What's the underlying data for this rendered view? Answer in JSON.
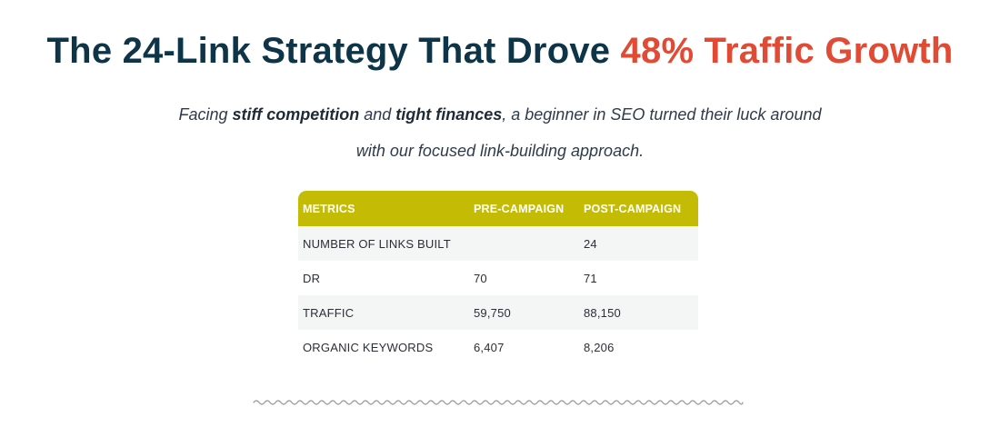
{
  "hero": {
    "title_main": "The 24-Link Strategy That Drove ",
    "title_accent": "48% Traffic Growth",
    "subtitle": {
      "line1_a": "Facing ",
      "line1_b": "stiff competition",
      "line1_c": " and ",
      "line1_d": "tight finances",
      "line1_e": ", a beginner in SEO turned their luck around",
      "line2": "with our focused link-building approach."
    }
  },
  "table": {
    "headers": [
      "METRICS",
      "PRE-CAMPAIGN",
      "POST-CAMPAIGN"
    ],
    "rows": [
      [
        "NUMBER OF LINKS BUILT",
        "",
        "24"
      ],
      [
        "DR",
        "70",
        "71"
      ],
      [
        "TRAFFIC",
        "59,750",
        "88,150"
      ],
      [
        "ORGANIC KEYWORDS",
        "6,407",
        "8,206"
      ]
    ]
  },
  "colors": {
    "title": "#0e3448",
    "accent": "#e14b35",
    "table_header": "#c4bc04",
    "row_stripe": "#f4f5f5"
  },
  "icons": {
    "divider": "wavy-divider-icon"
  }
}
